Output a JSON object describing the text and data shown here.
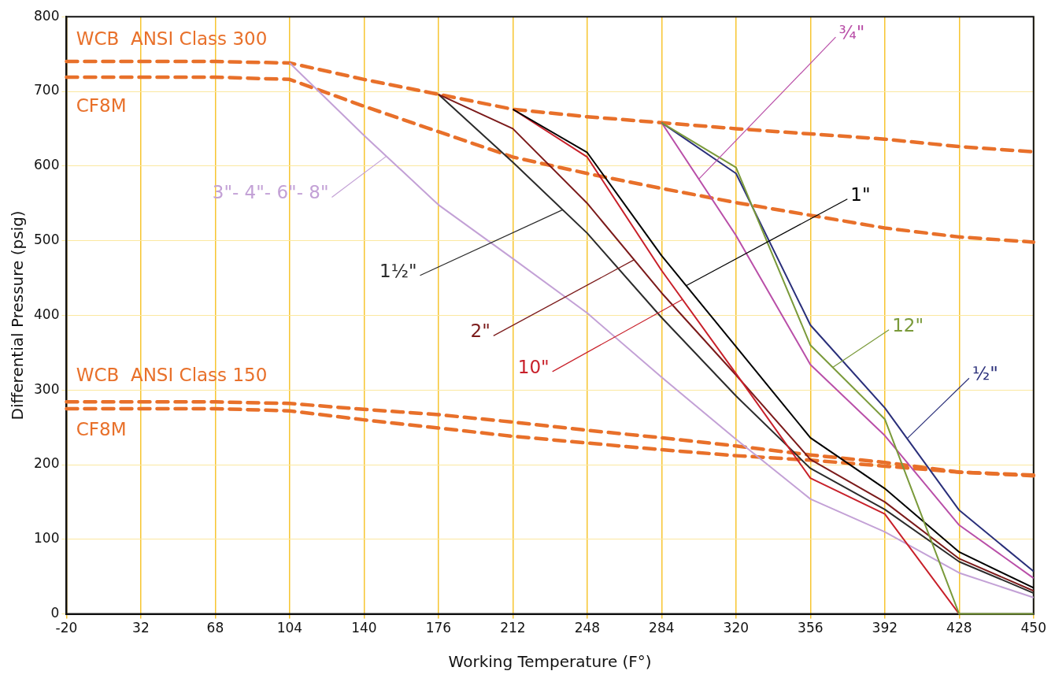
{
  "chart_data": {
    "type": "line",
    "xlabel": "Working Temperature (F°)",
    "ylabel": "Differential Pressure (psig)",
    "categories": [
      "-20",
      "32",
      "68",
      "104",
      "140",
      "176",
      "212",
      "248",
      "284",
      "320",
      "356",
      "392",
      "428",
      "450"
    ],
    "ylim": [
      0,
      800
    ],
    "yticks": [
      0,
      100,
      200,
      300,
      400,
      500,
      600,
      700,
      800
    ],
    "grid": true,
    "legend": false,
    "marker": "none",
    "series": [
      {
        "name": "WCB  ANSI Class 300",
        "color": "#e8702a",
        "line_style": "dashed",
        "values": [
          740,
          740,
          740,
          738,
          716,
          696,
          676,
          666,
          658,
          650,
          643,
          636,
          626,
          619
        ]
      },
      {
        "name": "CF8M",
        "color": "#e8702a",
        "line_style": "dashed",
        "values": [
          719,
          719,
          719,
          716,
          680,
          646,
          612,
          590,
          570,
          551,
          534,
          517,
          505,
          498
        ]
      },
      {
        "name": "WCB  ANSI Class 150",
        "color": "#e8702a",
        "line_style": "dashed",
        "values": [
          284,
          284,
          284,
          282,
          274,
          267,
          257,
          246,
          236,
          225,
          213,
          203,
          190,
          186
        ]
      },
      {
        "name": "CF8M",
        "color": "#e8702a",
        "line_style": "dashed",
        "values": [
          275,
          275,
          275,
          272,
          260,
          249,
          238,
          229,
          220,
          212,
          206,
          198,
          190,
          185
        ]
      },
      {
        "name": "3\"- 4\"- 6\"- 8\"",
        "color": "#c3a1d6",
        "line_style": "solid",
        "values": [
          null,
          null,
          null,
          738,
          641,
          548,
          476,
          403,
          317,
          234,
          154,
          110,
          55,
          22
        ]
      },
      {
        "name": "1½\"",
        "color": "#2b2b2b",
        "line_style": "solid",
        "values": [
          null,
          null,
          null,
          null,
          null,
          696,
          605,
          510,
          397,
          292,
          195,
          140,
          70,
          28
        ]
      },
      {
        "name": "2\"",
        "color": "#7b1a1a",
        "line_style": "solid",
        "values": [
          null,
          null,
          null,
          null,
          null,
          696,
          650,
          550,
          430,
          320,
          207,
          150,
          74,
          31
        ]
      },
      {
        "name": "10\"",
        "color": "#c8202a",
        "line_style": "solid",
        "values": [
          null,
          null,
          null,
          null,
          null,
          null,
          676,
          612,
          460,
          322,
          182,
          134,
          0,
          null
        ]
      },
      {
        "name": "1\"",
        "color": "#000000",
        "line_style": "solid",
        "values": [
          null,
          null,
          null,
          null,
          null,
          null,
          676,
          618,
          480,
          358,
          236,
          168,
          83,
          35
        ]
      },
      {
        "name": "¾\"",
        "color": "#b94fa8",
        "line_style": "solid",
        "values": [
          null,
          null,
          null,
          null,
          null,
          null,
          null,
          null,
          658,
          507,
          334,
          239,
          119,
          48
        ]
      },
      {
        "name": "½\"",
        "color": "#2a2f7a",
        "line_style": "solid",
        "values": [
          null,
          null,
          null,
          null,
          null,
          null,
          null,
          null,
          658,
          590,
          387,
          276,
          139,
          57
        ]
      },
      {
        "name": "12\"",
        "color": "#7a9a3a",
        "line_style": "solid",
        "values": [
          null,
          null,
          null,
          null,
          null,
          null,
          null,
          null,
          658,
          598,
          360,
          261,
          0,
          0
        ]
      }
    ]
  }
}
